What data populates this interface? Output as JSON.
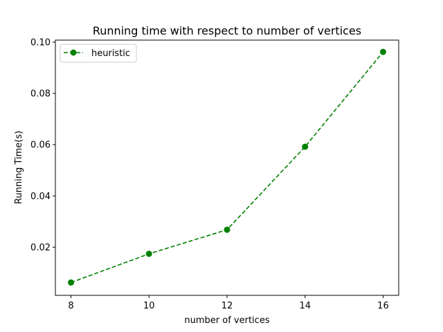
{
  "chart_data": {
    "type": "line",
    "title": "Running time with respect to number of vertices",
    "xlabel": "number of vertices",
    "ylabel": "Running Time(s)",
    "x": [
      8,
      10,
      12,
      14,
      16
    ],
    "xticks": [
      "8",
      "10",
      "12",
      "14",
      "16"
    ],
    "yticks": [
      "0.02",
      "0.04",
      "0.06",
      "0.08",
      "0.10"
    ],
    "xlim": [
      7.6,
      16.4
    ],
    "ylim": [
      0.0012,
      0.1008
    ],
    "grid": false,
    "legend_position": "top-left",
    "series": [
      {
        "name": "heuristic",
        "values": [
          0.0062,
          0.0174,
          0.0268,
          0.0592,
          0.0962
        ],
        "color": "#008000",
        "line_style": "dashed",
        "marker": "circle"
      }
    ]
  }
}
